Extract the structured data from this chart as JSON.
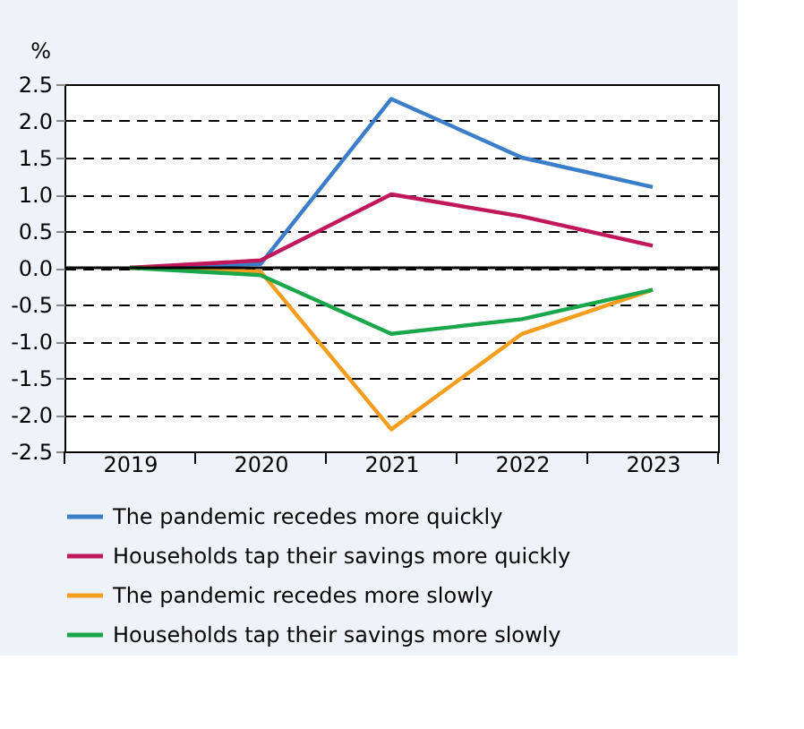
{
  "chart_data": {
    "type": "line",
    "ylabel": "%",
    "categories": [
      "2019",
      "2020",
      "2021",
      "2022",
      "2023"
    ],
    "series": [
      {
        "name": "The pandemic recedes more quickly",
        "color": "#3a7dc9",
        "values": [
          0,
          0.05,
          2.3,
          1.5,
          1.1
        ]
      },
      {
        "name": "Households tap their savings more quickly",
        "color": "#c0185a",
        "values": [
          0,
          0.1,
          1.0,
          0.7,
          0.3
        ]
      },
      {
        "name": "The pandemic recedes more slowly",
        "color": "#f59d1e",
        "values": [
          0,
          -0.05,
          -2.2,
          -0.9,
          -0.3
        ]
      },
      {
        "name": "Households tap their savings more slowly",
        "color": "#1aa64a",
        "values": [
          0,
          -0.1,
          -0.9,
          -0.7,
          -0.3
        ]
      }
    ],
    "ylim": [
      -2.5,
      2.5
    ],
    "yticks": [
      {
        "value": 2.5,
        "label": "2.5"
      },
      {
        "value": 2,
        "label": "2.0"
      },
      {
        "value": 1.5,
        "label": "1.5"
      },
      {
        "value": 1,
        "label": "1.0"
      },
      {
        "value": 0.5,
        "label": "0.5"
      },
      {
        "value": 0,
        "label": "0.0"
      },
      {
        "value": -0.5,
        "label": "-0.5"
      },
      {
        "value": -1,
        "label": "-1.0"
      },
      {
        "value": -1.5,
        "label": "-1.5"
      },
      {
        "value": -2,
        "label": "-2.0"
      },
      {
        "value": -2.5,
        "label": "-2.5"
      }
    ],
    "ref_lines": [
      {
        "axis": "y",
        "value": 0,
        "color": "#000000",
        "line_style": "solid"
      }
    ],
    "grid": "y",
    "legend": "bottom",
    "marker": "none",
    "line_style": "solid"
  }
}
